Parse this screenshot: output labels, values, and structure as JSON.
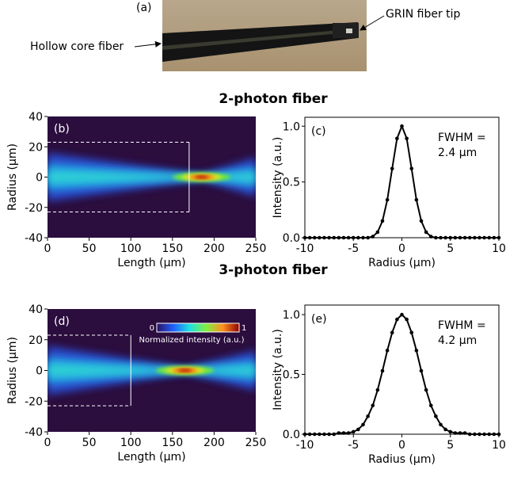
{
  "figure": {
    "panel_label": "(a)",
    "annotations": [
      "Hollow core fiber",
      "GRIN fiber tip"
    ],
    "section_titles": [
      "2-photon fiber",
      "3-photon fiber"
    ]
  },
  "chart_data": [
    {
      "type": "heatmap",
      "panel_label": "(b)",
      "xlabel": "Length (µm)",
      "ylabel": "Radius (µm)",
      "xlim": [
        0,
        250
      ],
      "ylim": [
        -40,
        40
      ],
      "xticks": [
        0,
        50,
        100,
        150,
        200,
        250
      ],
      "yticks": [
        -40,
        -20,
        0,
        20,
        40
      ],
      "region": {
        "x": [
          0,
          170
        ],
        "y": [
          -23,
          23
        ]
      },
      "focus": 185
    },
    {
      "type": "line",
      "panel_label": "(c)",
      "xlabel": "Radius (µm)",
      "ylabel": "Intensity (a.u.)",
      "annotation": [
        "FWHM =",
        "2.4 µm"
      ],
      "color": "#000000",
      "xlim": [
        -10,
        10
      ],
      "ylim": [
        0,
        1.08
      ],
      "xticks": [
        -10,
        -5,
        0,
        5,
        10
      ],
      "yticks": [
        {
          "value": 0,
          "label": "0.0"
        },
        {
          "value": 0.5,
          "label": "0.5"
        },
        {
          "value": 1,
          "label": "1.0"
        }
      ],
      "x": [
        -10,
        -9.5,
        -9,
        -8.5,
        -8,
        -7.5,
        -7,
        -6.5,
        -6,
        -5.5,
        -5,
        -4.5,
        -4,
        -3.5,
        -3,
        -2.5,
        -2,
        -1.5,
        -1,
        -0.5,
        0,
        0.5,
        1,
        1.5,
        2,
        2.5,
        3,
        3.5,
        4,
        4.5,
        5,
        5.5,
        6,
        6.5,
        7,
        7.5,
        8,
        8.5,
        9,
        9.5,
        10
      ],
      "values": [
        0,
        0,
        0,
        0,
        0,
        0,
        0,
        0,
        0,
        0,
        0,
        0,
        0,
        0,
        0.01,
        0.05,
        0.15,
        0.34,
        0.62,
        0.89,
        1,
        0.89,
        0.62,
        0.34,
        0.15,
        0.05,
        0.01,
        0,
        0,
        0,
        0,
        0,
        0,
        0,
        0,
        0,
        0,
        0,
        0,
        0,
        0
      ]
    },
    {
      "type": "heatmap",
      "panel_label": "(d)",
      "xlabel": "Length (µm)",
      "ylabel": "Radius (µm)",
      "xlim": [
        0,
        250
      ],
      "ylim": [
        -40,
        40
      ],
      "xticks": [
        0,
        50,
        100,
        150,
        200,
        250
      ],
      "yticks": [
        -40,
        -20,
        0,
        20,
        40
      ],
      "region": {
        "x": [
          0,
          100
        ],
        "y": [
          -23,
          23
        ]
      },
      "focus": 165,
      "colorbar": {
        "ticks": [
          0,
          1
        ],
        "label": "Normalized intensity (a.u.)"
      }
    },
    {
      "type": "line",
      "panel_label": "(e)",
      "xlabel": "Radius (µm)",
      "ylabel": "Intensity (a.u.)",
      "annotation": [
        "FWHM =",
        "4.2 µm"
      ],
      "color": "#000000",
      "xlim": [
        -10,
        10
      ],
      "ylim": [
        0,
        1.08
      ],
      "xticks": [
        -10,
        -5,
        0,
        5,
        10
      ],
      "yticks": [
        {
          "value": 0,
          "label": "0.0"
        },
        {
          "value": 0.5,
          "label": "0.5"
        },
        {
          "value": 1,
          "label": "1.0"
        }
      ],
      "x": [
        -10,
        -9.5,
        -9,
        -8.5,
        -8,
        -7.5,
        -7,
        -6.5,
        -6,
        -5.5,
        -5,
        -4.5,
        -4,
        -3.5,
        -3,
        -2.5,
        -2,
        -1.5,
        -1,
        -0.5,
        0,
        0.5,
        1,
        1.5,
        2,
        2.5,
        3,
        3.5,
        4,
        4.5,
        5,
        5.5,
        6,
        6.5,
        7,
        7.5,
        8,
        8.5,
        9,
        9.5,
        10
      ],
      "values": [
        0,
        0,
        0,
        0,
        0,
        0,
        0,
        0.01,
        0.01,
        0.01,
        0.02,
        0.04,
        0.08,
        0.15,
        0.24,
        0.37,
        0.53,
        0.7,
        0.85,
        0.96,
        1,
        0.96,
        0.85,
        0.7,
        0.53,
        0.37,
        0.24,
        0.15,
        0.08,
        0.04,
        0.02,
        0.01,
        0.01,
        0.01,
        0,
        0,
        0,
        0,
        0,
        0,
        0
      ]
    }
  ]
}
